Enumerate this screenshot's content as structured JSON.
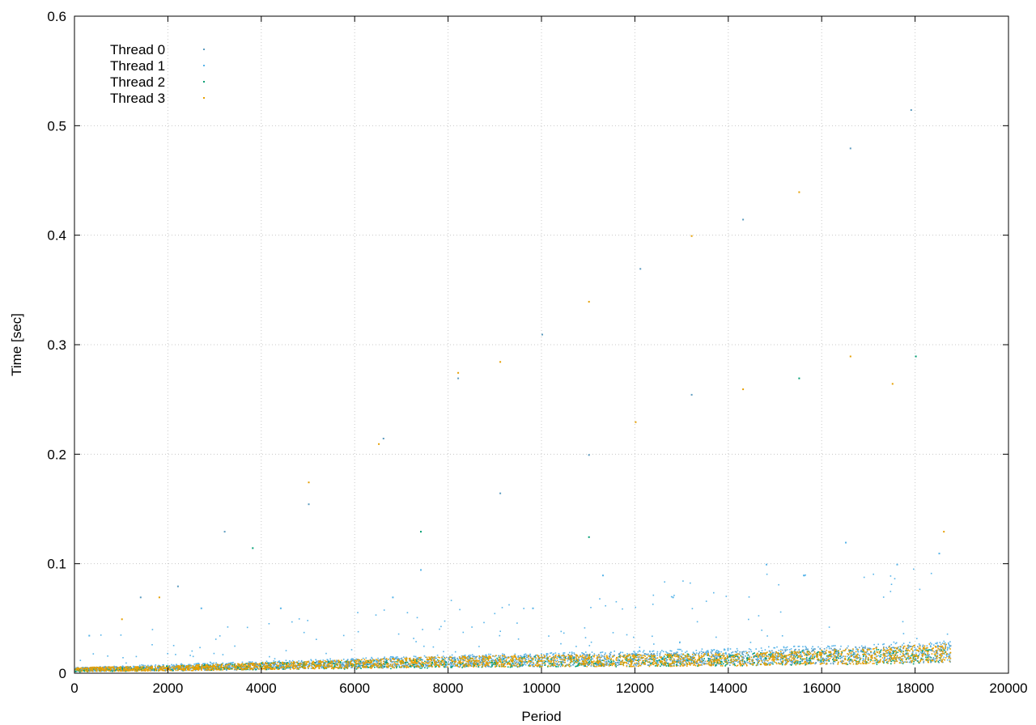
{
  "chart_data": {
    "type": "scatter",
    "title": "",
    "xlabel": "Period",
    "ylabel": "Time [sec]",
    "xlim": [
      0,
      20000
    ],
    "ylim": [
      0,
      0.6
    ],
    "xticks": [
      0,
      2000,
      4000,
      6000,
      8000,
      10000,
      12000,
      14000,
      16000,
      18000,
      20000
    ],
    "yticks": [
      0,
      0.1,
      0.2,
      0.3,
      0.4,
      0.5,
      0.6
    ],
    "xtick_labels": [
      "0",
      "2000",
      "4000",
      "6000",
      "8000",
      "10000",
      "12000",
      "14000",
      "16000",
      "18000",
      "20000"
    ],
    "ytick_labels": [
      "0",
      "0.1",
      "0.2",
      "0.3",
      "0.4",
      "0.5",
      "0.6"
    ],
    "grid": true,
    "legend_position": "top-left",
    "x_extent": [
      0,
      18750
    ],
    "series": [
      {
        "name": "Thread 0",
        "color": "#5b9bbf",
        "x": [
          0,
          2000,
          4000,
          6000,
          8000,
          10000,
          12000,
          14000,
          16000,
          18000,
          18750
        ],
        "y": [
          0.004,
          0.005,
          0.007,
          0.009,
          0.011,
          0.012,
          0.013,
          0.014,
          0.016,
          0.018,
          0.019
        ],
        "outliers": [
          [
            1400,
            0.07
          ],
          [
            2200,
            0.08
          ],
          [
            3200,
            0.13
          ],
          [
            5000,
            0.155
          ],
          [
            6600,
            0.215
          ],
          [
            8200,
            0.27
          ],
          [
            9100,
            0.165
          ],
          [
            10000,
            0.31
          ],
          [
            11000,
            0.2
          ],
          [
            12100,
            0.37
          ],
          [
            13200,
            0.255
          ],
          [
            14300,
            0.415
          ],
          [
            16600,
            0.48
          ],
          [
            17900,
            0.515
          ]
        ]
      },
      {
        "name": "Thread 1",
        "color": "#56b4e9",
        "x": [
          0,
          2000,
          4000,
          6000,
          8000,
          10000,
          12000,
          14000,
          16000,
          18000,
          18750
        ],
        "y": [
          0.004,
          0.006,
          0.008,
          0.01,
          0.012,
          0.013,
          0.015,
          0.016,
          0.018,
          0.02,
          0.021
        ],
        "outliers": [
          [
            300,
            0.035
          ],
          [
            2700,
            0.06
          ],
          [
            4400,
            0.06
          ],
          [
            6800,
            0.07
          ],
          [
            7400,
            0.095
          ],
          [
            9800,
            0.06
          ],
          [
            11300,
            0.09
          ],
          [
            12800,
            0.07
          ],
          [
            14800,
            0.1
          ],
          [
            15600,
            0.09
          ],
          [
            16500,
            0.12
          ],
          [
            17600,
            0.1
          ],
          [
            18500,
            0.11
          ]
        ]
      },
      {
        "name": "Thread 2",
        "color": "#009e73",
        "x": [
          0,
          2000,
          4000,
          6000,
          8000,
          10000,
          12000,
          14000,
          16000,
          18000,
          18750
        ],
        "y": [
          0.003,
          0.005,
          0.007,
          0.008,
          0.01,
          0.011,
          0.012,
          0.013,
          0.015,
          0.016,
          0.017
        ],
        "outliers": [
          [
            3800,
            0.115
          ],
          [
            7400,
            0.13
          ],
          [
            11000,
            0.125
          ],
          [
            15500,
            0.27
          ],
          [
            18000,
            0.29
          ]
        ]
      },
      {
        "name": "Thread 3",
        "color": "#e69f00",
        "x": [
          0,
          2000,
          4000,
          6000,
          8000,
          10000,
          12000,
          14000,
          16000,
          18000,
          18750
        ],
        "y": [
          0.004,
          0.005,
          0.007,
          0.009,
          0.011,
          0.012,
          0.012,
          0.013,
          0.015,
          0.018,
          0.02
        ],
        "outliers": [
          [
            1000,
            0.05
          ],
          [
            1800,
            0.07
          ],
          [
            5000,
            0.175
          ],
          [
            6500,
            0.21
          ],
          [
            8200,
            0.275
          ],
          [
            9100,
            0.285
          ],
          [
            11000,
            0.34
          ],
          [
            12000,
            0.23
          ],
          [
            13200,
            0.4
          ],
          [
            14300,
            0.26
          ],
          [
            15500,
            0.44
          ],
          [
            16600,
            0.29
          ],
          [
            17500,
            0.265
          ],
          [
            18600,
            0.13
          ]
        ]
      }
    ]
  }
}
